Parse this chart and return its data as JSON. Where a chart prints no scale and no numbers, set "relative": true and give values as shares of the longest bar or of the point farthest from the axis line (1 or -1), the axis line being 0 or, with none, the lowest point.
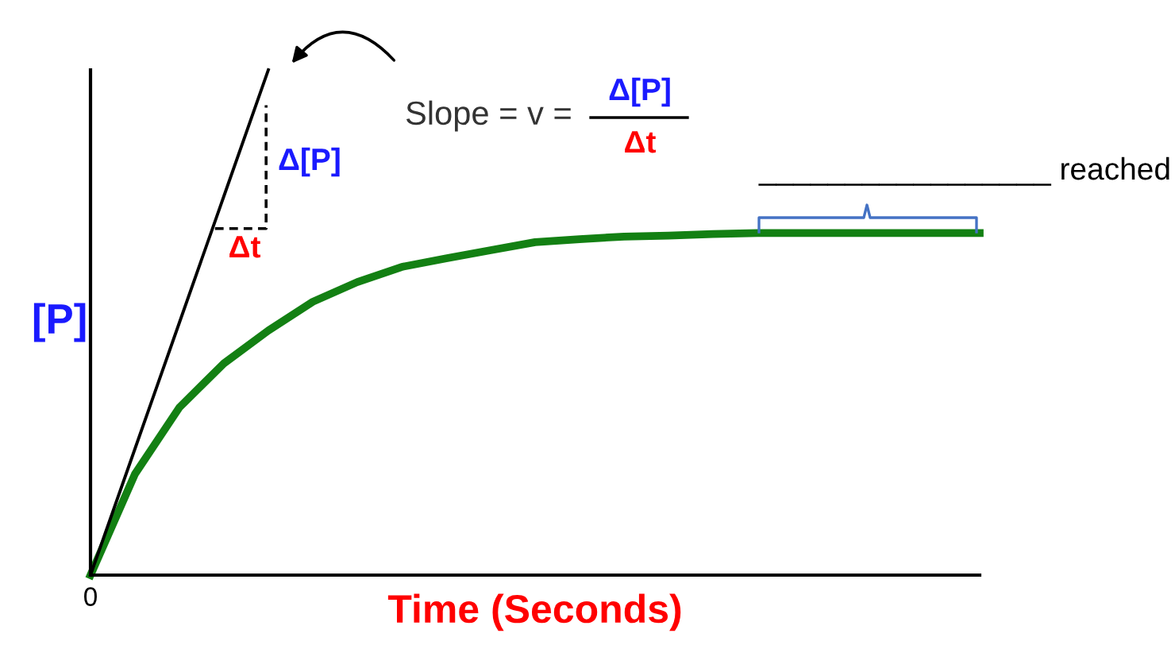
{
  "chart_data": {
    "type": "line",
    "relative": true,
    "xlabel": "Time (Seconds)",
    "ylabel": "[P]",
    "categories": [
      null,
      null,
      null,
      null,
      null,
      null,
      null,
      null,
      null,
      null,
      null,
      null,
      null,
      null,
      null,
      null,
      null,
      null,
      null,
      null,
      null
    ],
    "series": [
      {
        "color": "#138013",
        "values": [
          0,
          0.2,
          0.332,
          0.419,
          0.484,
          0.541,
          0.58,
          0.61,
          0.627,
          0.643,
          0.659,
          0.665,
          0.67,
          0.672,
          0.675,
          0.677,
          0.677,
          0.677,
          0.677,
          0.677,
          0.677
        ]
      },
      {
        "color": "#000000",
        "values": [
          0,
          0.25,
          0.5,
          0.75,
          1,
          null,
          null,
          null,
          null,
          null,
          null,
          null,
          null,
          null,
          null,
          null,
          null,
          null,
          null,
          null,
          null
        ]
      }
    ],
    "annotations": [
      "Slope = v =",
      "Δ[P]",
      "Δt",
      "_________________ reached",
      "0",
      "Δ[P]",
      "Δt"
    ]
  }
}
